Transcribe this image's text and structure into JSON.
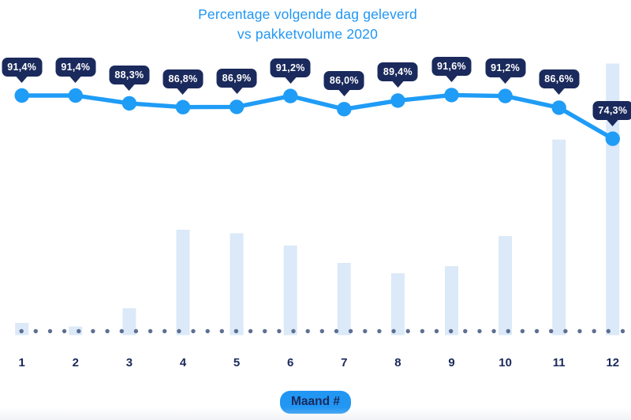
{
  "title": {
    "line1": "Percentage volgende dag geleverd",
    "line2": "vs pakketvolume 2020"
  },
  "x_axis": {
    "badge_label": "Maand #"
  },
  "colors": {
    "accent_blue": "#2196f3",
    "line_blue": "#1f9cf6",
    "badge_navy": "#1b2a5c",
    "bar_fill": "#dbe9f8",
    "dot_gray": "#5d6f92",
    "label_navy": "#1b2a5c",
    "background": "#ffffff"
  },
  "chart_data": {
    "type": "combo",
    "title": "Percentage volgende dag geleverd vs pakketvolume 2020",
    "xlabel": "Maand #",
    "ylabel": "",
    "legend": "none",
    "grid": false,
    "y_axis_visible": false,
    "categories": [
      "1",
      "2",
      "3",
      "4",
      "5",
      "6",
      "7",
      "8",
      "9",
      "10",
      "11",
      "12"
    ],
    "series": [
      {
        "name": "Percentage volgende dag geleverd",
        "type": "line",
        "unit": "%",
        "values": [
          91.4,
          91.4,
          88.3,
          86.8,
          86.9,
          91.2,
          86.0,
          89.4,
          91.6,
          91.2,
          86.6,
          74.3
        ],
        "labels": [
          "91,4%",
          "91,4%",
          "88,3%",
          "86,8%",
          "86,9%",
          "91,2%",
          "86,0%",
          "89,4%",
          "91,6%",
          "91,2%",
          "86,6%",
          "74,3%"
        ]
      },
      {
        "name": "Pakketvolume",
        "type": "bar",
        "unit": "relative index (max = 100, no axis shown)",
        "values": [
          4.5,
          3.2,
          9.9,
          38.8,
          37.5,
          33.0,
          26.6,
          22.8,
          25.4,
          36.5,
          72.0,
          100.0
        ]
      }
    ]
  }
}
